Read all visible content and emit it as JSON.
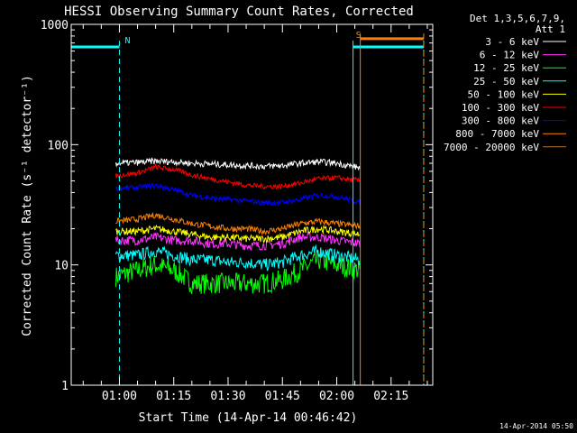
{
  "chart_data": {
    "type": "line",
    "title": "HESSI Observing Summary Count Rates, Corrected",
    "xlabel": "Start Time (14-Apr-14 00:46:42)",
    "ylabel": "Corrected Count Rate (s⁻¹ detector⁻¹)",
    "y_scale": "log",
    "ylim": [
      1,
      1000
    ],
    "xlim": [
      "00:46:42",
      "02:26:30"
    ],
    "x_ticks": [
      "01:00",
      "01:15",
      "01:30",
      "01:45",
      "02:00",
      "02:15"
    ],
    "y_ticks": [
      "1",
      "10",
      "100",
      "1000"
    ],
    "legend_header": [
      "Det 1,3,5,6,7,9,",
      "Att 1"
    ],
    "legend_position": "right",
    "data_start": "00:59:00",
    "data_end": "02:06:30",
    "series": [
      {
        "name": "3 - 6 keV",
        "color": "#ffffff",
        "x": [
          "00:59:00",
          "01:05:00",
          "01:10:00",
          "01:15:00",
          "01:20:00",
          "01:25:00",
          "01:30:00",
          "01:35:00",
          "01:40:00",
          "01:45:00",
          "01:50:00",
          "01:55:00",
          "02:00:00",
          "02:06:30"
        ],
        "values": [
          70,
          71,
          73,
          72,
          70,
          69,
          68,
          67,
          66,
          67,
          70,
          72,
          70,
          64
        ]
      },
      {
        "name": "6 - 12 keV",
        "color": "#ff33ff",
        "x": [
          "00:59:00",
          "01:05:00",
          "01:10:00",
          "01:15:00",
          "01:20:00",
          "01:25:00",
          "01:30:00",
          "01:35:00",
          "01:40:00",
          "01:45:00",
          "01:50:00",
          "01:55:00",
          "02:00:00",
          "02:06:30"
        ],
        "values": [
          16,
          16,
          17,
          16,
          16,
          15,
          15,
          14.5,
          14.5,
          15,
          17,
          17,
          16,
          15
        ]
      },
      {
        "name": "12 - 25 keV",
        "color": "#00ff00",
        "x": [
          "00:59:00",
          "01:05:00",
          "01:10:00",
          "01:15:00",
          "01:20:00",
          "01:25:00",
          "01:30:00",
          "01:35:00",
          "01:40:00",
          "01:45:00",
          "01:50:00",
          "01:55:00",
          "02:00:00",
          "02:06:30"
        ],
        "values": [
          8,
          9,
          10,
          9,
          7,
          7,
          7,
          7,
          7,
          7.5,
          9,
          11,
          10,
          9
        ]
      },
      {
        "name": "25 - 50 keV",
        "color": "#00ffff",
        "x": [
          "00:59:00",
          "01:05:00",
          "01:10:00",
          "01:15:00",
          "01:20:00",
          "01:25:00",
          "01:30:00",
          "01:35:00",
          "01:40:00",
          "01:45:00",
          "01:50:00",
          "01:55:00",
          "02:00:00",
          "02:06:30"
        ],
        "values": [
          12,
          12,
          13,
          12,
          11,
          11,
          10.5,
          10.5,
          10,
          10.5,
          12,
          13,
          12,
          11
        ]
      },
      {
        "name": "50 - 100 keV",
        "color": "#ffff00",
        "x": [
          "00:59:00",
          "01:05:00",
          "01:10:00",
          "01:15:00",
          "01:20:00",
          "01:25:00",
          "01:30:00",
          "01:35:00",
          "01:40:00",
          "01:45:00",
          "01:50:00",
          "01:55:00",
          "02:00:00",
          "02:06:30"
        ],
        "values": [
          19,
          19,
          20,
          19,
          18,
          17,
          17,
          16.5,
          16.5,
          17,
          19,
          20,
          19,
          18
        ]
      },
      {
        "name": "100 - 300 keV",
        "color": "#ff0000",
        "x": [
          "00:59:00",
          "01:05:00",
          "01:10:00",
          "01:15:00",
          "01:20:00",
          "01:25:00",
          "01:30:00",
          "01:35:00",
          "01:40:00",
          "01:45:00",
          "01:50:00",
          "01:55:00",
          "02:00:00",
          "02:06:30"
        ],
        "values": [
          55,
          58,
          65,
          62,
          56,
          52,
          49,
          46,
          45,
          45,
          48,
          52,
          53,
          50
        ]
      },
      {
        "name": "300 - 800 keV",
        "color": "#0000ff",
        "x": [
          "00:59:00",
          "01:05:00",
          "01:10:00",
          "01:15:00",
          "01:20:00",
          "01:25:00",
          "01:30:00",
          "01:35:00",
          "01:40:00",
          "01:45:00",
          "01:50:00",
          "01:55:00",
          "02:00:00",
          "02:06:30"
        ],
        "values": [
          43,
          44,
          46,
          42,
          38,
          36,
          35,
          34,
          33,
          33,
          35,
          38,
          37,
          33
        ]
      },
      {
        "name": "800 - 7000 keV",
        "color": "#ff8000",
        "x": [
          "00:59:00",
          "01:05:00",
          "01:10:00",
          "01:15:00",
          "01:20:00",
          "01:25:00",
          "01:30:00",
          "01:35:00",
          "01:40:00",
          "01:45:00",
          "01:50:00",
          "01:55:00",
          "02:00:00",
          "02:06:30"
        ],
        "values": [
          23,
          24,
          26,
          24,
          22,
          21,
          20,
          20,
          19,
          20,
          22,
          23,
          22,
          21
        ]
      },
      {
        "name": "7000 - 20000 keV",
        "color": "#b87333",
        "x": [],
        "values": []
      }
    ],
    "annotations": [
      {
        "text": "N",
        "color": "#00ffff"
      },
      {
        "text": "S",
        "color": "#ff8000"
      }
    ],
    "flag_lines": [
      {
        "name": "night",
        "color": "#00ffff",
        "times": [
          "00:46:42",
          "01:00:00",
          "02:04:30",
          "02:24:00"
        ]
      },
      {
        "name": "saa",
        "color": "#ff8000",
        "times": [
          "02:06:30",
          "02:24:00"
        ]
      }
    ],
    "flag_bars": [
      {
        "name": "night-bar-1",
        "color": "#00ffff",
        "x": [
          "00:46:42",
          "01:00:00"
        ],
        "level": 650
      },
      {
        "name": "night-bar-2",
        "color": "#00ffff",
        "x": [
          "02:04:30",
          "02:24:00"
        ],
        "level": 650
      },
      {
        "name": "saa-bar",
        "color": "#ff8000",
        "x": [
          "02:06:30",
          "02:24:00"
        ],
        "level": 760
      }
    ],
    "timestamp": "14-Apr-2014 05:50"
  }
}
